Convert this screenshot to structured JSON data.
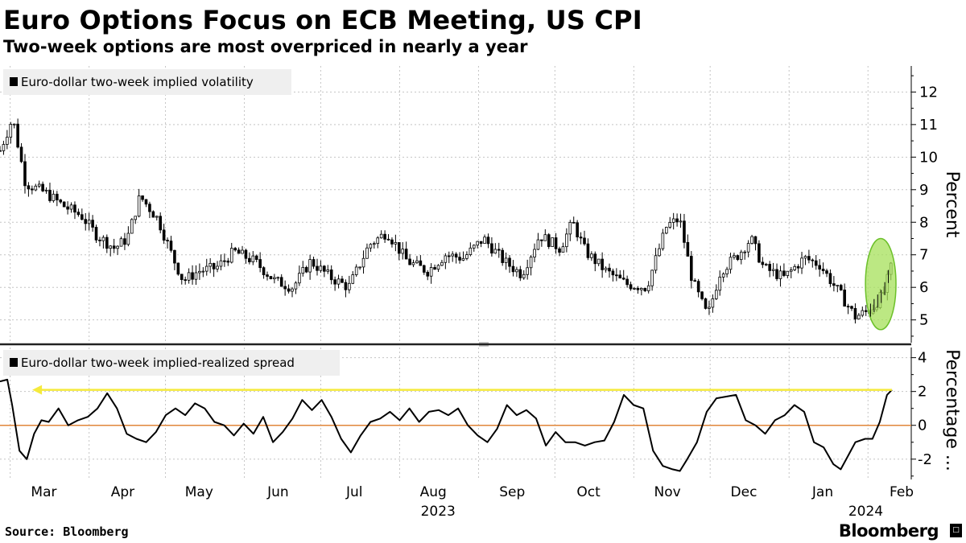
{
  "title": "Euro Options Focus on ECB Meeting, US CPI",
  "subtitle": "Two-week options are most overpriced in nearly a year",
  "source": "Source: Bloomberg",
  "brand": "Bloomberg",
  "brand_icon": "terminal-icon",
  "colors": {
    "candle": "#000000",
    "spread_line": "#000000",
    "zero_line": "#e0863a",
    "highlight_arrow": "#f5ea3c",
    "highlight_ellipse_fill": "#a6e05a",
    "highlight_ellipse_stroke": "#6cc02a",
    "legend_bg": "#efefef",
    "grid": "#c4c4c4"
  },
  "chart_data": [
    {
      "type": "candlestick",
      "legend": "Euro-dollar two-week implied volatility",
      "ylabel": "Percent",
      "ylim": [
        4.3,
        12.8
      ],
      "yticks": [
        5,
        6,
        7,
        8,
        9,
        10,
        11,
        12
      ],
      "xlim": [
        0,
        358
      ],
      "x_unit": "days since 2023-02-23",
      "close_anchors": [
        [
          0,
          10.2
        ],
        [
          5,
          11.2
        ],
        [
          10,
          9.2
        ],
        [
          18,
          8.9
        ],
        [
          25,
          8.5
        ],
        [
          32,
          8.2
        ],
        [
          38,
          7.6
        ],
        [
          45,
          7.2
        ],
        [
          50,
          7.5
        ],
        [
          55,
          8.8
        ],
        [
          62,
          8.1
        ],
        [
          68,
          6.9
        ],
        [
          72,
          6.2
        ],
        [
          78,
          6.5
        ],
        [
          85,
          6.6
        ],
        [
          92,
          7.1
        ],
        [
          100,
          6.8
        ],
        [
          108,
          6.2
        ],
        [
          115,
          6.0
        ],
        [
          122,
          6.8
        ],
        [
          130,
          6.3
        ],
        [
          137,
          6.0
        ],
        [
          145,
          7.3
        ],
        [
          152,
          7.7
        ],
        [
          160,
          6.8
        ],
        [
          168,
          6.5
        ],
        [
          175,
          7.0
        ],
        [
          182,
          6.9
        ],
        [
          190,
          7.5
        ],
        [
          198,
          6.8
        ],
        [
          205,
          6.4
        ],
        [
          212,
          7.6
        ],
        [
          220,
          7.2
        ],
        [
          225,
          8.0
        ],
        [
          230,
          7.1
        ],
        [
          238,
          6.5
        ],
        [
          246,
          6.1
        ],
        [
          254,
          6.0
        ],
        [
          262,
          7.9
        ],
        [
          267,
          8.1
        ],
        [
          272,
          6.2
        ],
        [
          278,
          5.1
        ],
        [
          283,
          6.5
        ],
        [
          290,
          7.0
        ],
        [
          295,
          7.5
        ],
        [
          300,
          6.6
        ],
        [
          308,
          6.3
        ],
        [
          316,
          6.9
        ],
        [
          322,
          6.7
        ],
        [
          330,
          5.8
        ],
        [
          336,
          5.1
        ],
        [
          342,
          5.3
        ],
        [
          347,
          5.8
        ],
        [
          350,
          6.6
        ]
      ],
      "highlight": {
        "x_range": [
          340,
          352
        ],
        "y_range": [
          4.7,
          7.5
        ]
      }
    },
    {
      "type": "line",
      "legend": "Euro-dollar two-week implied-realized spread",
      "ylabel": "Percentage ...",
      "ylim": [
        -3.2,
        4.6
      ],
      "yticks": [
        -2,
        0,
        2,
        4
      ],
      "xlim": [
        0,
        358
      ],
      "reference_line": 0,
      "points": [
        [
          0,
          2.6
        ],
        [
          3,
          2.7
        ],
        [
          5,
          1.2
        ],
        [
          8,
          -1.5
        ],
        [
          11,
          -2.0
        ],
        [
          14,
          -0.5
        ],
        [
          17,
          0.3
        ],
        [
          20,
          0.2
        ],
        [
          24,
          1.0
        ],
        [
          28,
          0.0
        ],
        [
          32,
          0.3
        ],
        [
          36,
          0.5
        ],
        [
          40,
          1.0
        ],
        [
          44,
          1.9
        ],
        [
          48,
          1.0
        ],
        [
          52,
          -0.5
        ],
        [
          56,
          -0.8
        ],
        [
          60,
          -1.0
        ],
        [
          64,
          -0.4
        ],
        [
          68,
          0.6
        ],
        [
          72,
          1.0
        ],
        [
          76,
          0.6
        ],
        [
          80,
          1.3
        ],
        [
          84,
          1.0
        ],
        [
          88,
          0.2
        ],
        [
          92,
          0.0
        ],
        [
          96,
          -0.6
        ],
        [
          100,
          0.1
        ],
        [
          104,
          -0.5
        ],
        [
          108,
          0.5
        ],
        [
          112,
          -1.0
        ],
        [
          116,
          -0.4
        ],
        [
          120,
          0.4
        ],
        [
          124,
          1.5
        ],
        [
          128,
          0.9
        ],
        [
          132,
          1.5
        ],
        [
          136,
          0.5
        ],
        [
          140,
          -0.8
        ],
        [
          144,
          -1.6
        ],
        [
          148,
          -0.6
        ],
        [
          152,
          0.2
        ],
        [
          156,
          0.4
        ],
        [
          160,
          0.8
        ],
        [
          164,
          0.3
        ],
        [
          168,
          1.0
        ],
        [
          172,
          0.2
        ],
        [
          176,
          0.8
        ],
        [
          180,
          0.9
        ],
        [
          184,
          0.6
        ],
        [
          188,
          1.0
        ],
        [
          192,
          0.0
        ],
        [
          196,
          -0.6
        ],
        [
          200,
          -1.0
        ],
        [
          204,
          -0.2
        ],
        [
          208,
          1.2
        ],
        [
          212,
          0.6
        ],
        [
          216,
          0.9
        ],
        [
          220,
          0.4
        ],
        [
          224,
          -1.2
        ],
        [
          228,
          -0.4
        ],
        [
          232,
          -1.0
        ],
        [
          236,
          -1.0
        ],
        [
          240,
          -1.2
        ],
        [
          244,
          -1.0
        ],
        [
          248,
          -0.9
        ],
        [
          252,
          0.2
        ],
        [
          256,
          1.8
        ],
        [
          260,
          1.2
        ],
        [
          264,
          1.0
        ],
        [
          268,
          -1.5
        ],
        [
          272,
          -2.4
        ],
        [
          276,
          -2.6
        ],
        [
          279,
          -2.7
        ],
        [
          282,
          -2.0
        ],
        [
          286,
          -1.0
        ],
        [
          290,
          0.8
        ],
        [
          294,
          1.6
        ],
        [
          298,
          1.7
        ],
        [
          302,
          1.8
        ],
        [
          306,
          0.3
        ],
        [
          310,
          0.0
        ],
        [
          314,
          -0.5
        ],
        [
          318,
          0.3
        ],
        [
          322,
          0.6
        ],
        [
          326,
          1.2
        ],
        [
          330,
          0.8
        ],
        [
          334,
          -1.0
        ],
        [
          338,
          -1.3
        ],
        [
          342,
          -2.3
        ],
        [
          345,
          -2.6
        ],
        [
          348,
          -1.8
        ],
        [
          351,
          -1.0
        ],
        [
          355,
          -0.8
        ],
        [
          358,
          -0.8
        ],
        [
          361,
          0.2
        ],
        [
          364,
          1.8
        ],
        [
          366,
          2.1
        ]
      ],
      "highlight_arrow": {
        "from_x": 366,
        "to_x": 4,
        "y": 2.1
      }
    }
  ],
  "x_axis": {
    "months": [
      {
        "label": "Mar",
        "x": 9
      },
      {
        "label": "Apr",
        "x": 40
      },
      {
        "label": "May",
        "x": 70
      },
      {
        "label": "Jun",
        "x": 101
      },
      {
        "label": "Jul",
        "x": 131
      },
      {
        "label": "Aug",
        "x": 162
      },
      {
        "label": "Sep",
        "x": 193
      },
      {
        "label": "Oct",
        "x": 223
      },
      {
        "label": "Nov",
        "x": 254
      },
      {
        "label": "Dec",
        "x": 284
      },
      {
        "label": "Jan",
        "x": 315
      },
      {
        "label": "Feb",
        "x": 346
      }
    ],
    "years": [
      {
        "label": "2023",
        "x": 162
      },
      {
        "label": "2024",
        "x": 330
      }
    ]
  }
}
